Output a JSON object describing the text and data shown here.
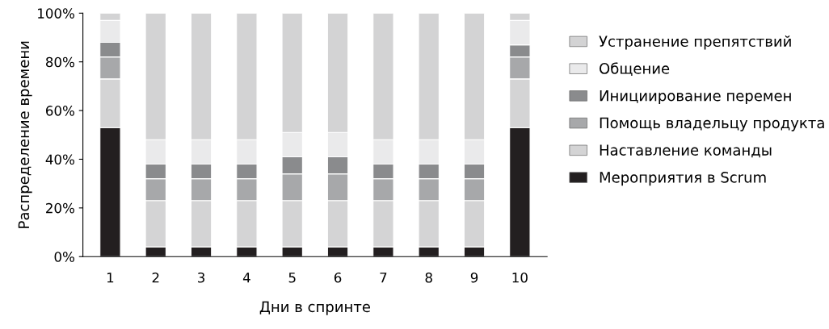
{
  "chart_data": {
    "type": "bar",
    "stacked": true,
    "xlabel": "Дни в спринте",
    "ylabel": "Распределение времени",
    "categories": [
      "1",
      "2",
      "3",
      "4",
      "5",
      "6",
      "7",
      "8",
      "9",
      "10"
    ],
    "series": [
      {
        "name": "Мероприятия в Scrum",
        "color": "#231f20",
        "values": [
          53,
          4,
          4,
          4,
          4,
          4,
          4,
          4,
          4,
          53
        ]
      },
      {
        "name": "Наставление команды",
        "color": "#d4d4d5",
        "values": [
          20,
          19,
          19,
          19,
          19,
          19,
          19,
          19,
          19,
          20
        ]
      },
      {
        "name": "Помощь владельцу продукта",
        "color": "#a7a8aa",
        "values": [
          9,
          9,
          9,
          9,
          11,
          11,
          9,
          9,
          9,
          9
        ]
      },
      {
        "name": "Инициирование перемен",
        "color": "#8a8b8d",
        "values": [
          6,
          6,
          6,
          6,
          7,
          7,
          6,
          6,
          6,
          5
        ]
      },
      {
        "name": "Общение",
        "color": "#eaeaeb",
        "values": [
          9,
          10,
          10,
          10,
          10,
          10,
          10,
          10,
          10,
          10
        ]
      },
      {
        "name": "Устранение препятствий",
        "color": "#d3d3d4",
        "values": [
          3,
          52,
          52,
          52,
          49,
          49,
          52,
          52,
          52,
          3
        ]
      }
    ],
    "ylim": [
      0,
      100
    ],
    "yticks": [
      {
        "value": 0,
        "label": "0%"
      },
      {
        "value": 20,
        "label": "20%"
      },
      {
        "value": 40,
        "label": "40%"
      },
      {
        "value": 60,
        "label": "60%"
      },
      {
        "value": 80,
        "label": "80%"
      },
      {
        "value": 100,
        "label": "100%"
      }
    ],
    "grid": false,
    "legend": "right"
  }
}
